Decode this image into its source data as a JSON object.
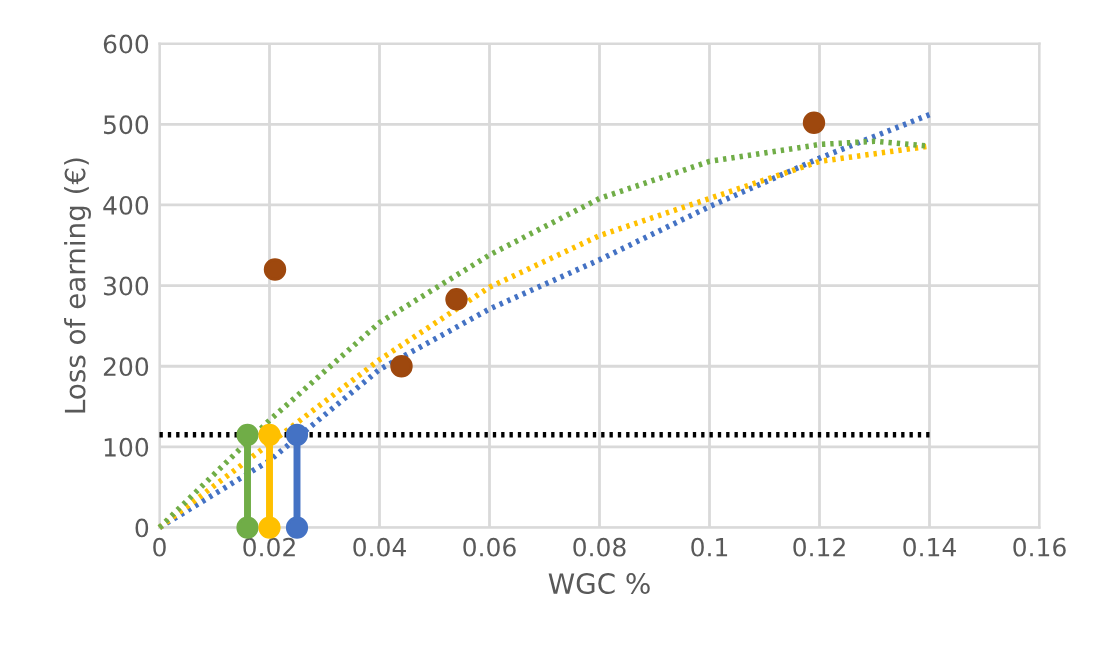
{
  "chart_data": {
    "type": "scatter",
    "xlabel": "WGC %",
    "ylabel": "Loss of earning (€)",
    "xlim": [
      0,
      0.16
    ],
    "xticks": [
      0,
      0.02,
      0.04,
      0.06,
      0.08,
      {
        "value": 0.1,
        "label": "0.1"
      },
      0.12,
      0.14,
      0.16
    ],
    "ylim": [
      0,
      600
    ],
    "yticks": [
      0,
      100,
      200,
      300,
      400,
      500,
      600
    ],
    "grid": true,
    "series": [
      {
        "type": "line",
        "line_style": "dotted",
        "marker": "none",
        "color": "#4472c4",
        "x": [
          0,
          0.02,
          0.04,
          0.06,
          0.08,
          0.1,
          0.12,
          0.14
        ],
        "values": [
          0,
          83,
          196,
          271,
          332,
          398,
          458,
          512
        ]
      },
      {
        "type": "line",
        "line_style": "dotted",
        "marker": "none",
        "color": "#ffc000",
        "x": [
          0,
          0.02,
          0.04,
          0.06,
          0.08,
          0.1,
          0.12,
          0.14
        ],
        "values": [
          0,
          104,
          208,
          298,
          362,
          408,
          454,
          473
        ]
      },
      {
        "type": "line",
        "line_style": "dotted",
        "marker": "none",
        "color": "#70ad47",
        "x": [
          0,
          0.02,
          0.04,
          0.06,
          0.08,
          0.1,
          0.12,
          0.13,
          0.14
        ],
        "values": [
          0,
          133,
          254,
          338,
          408,
          454,
          475,
          479,
          473
        ]
      },
      {
        "type": "line",
        "line_style": "dotted",
        "marker": "none",
        "color": "#000000",
        "x": [
          0,
          0.14
        ],
        "values": [
          115,
          115
        ]
      },
      {
        "type": "line",
        "line_style": "solid",
        "marker": "circle",
        "color": "#70ad47",
        "x": [
          0.016,
          0.016
        ],
        "values": [
          0,
          115
        ]
      },
      {
        "type": "line",
        "line_style": "solid",
        "marker": "circle",
        "color": "#ffc000",
        "x": [
          0.02,
          0.02
        ],
        "values": [
          0,
          115
        ]
      },
      {
        "type": "line",
        "line_style": "solid",
        "marker": "circle",
        "color": "#4472c4",
        "x": [
          0.025,
          0.025
        ],
        "values": [
          0,
          115
        ]
      },
      {
        "marker": "circle",
        "color": "#9e480e",
        "x": [
          0.021,
          0.044,
          0.054,
          0.119
        ],
        "values": [
          320,
          200,
          283,
          502
        ]
      }
    ]
  }
}
